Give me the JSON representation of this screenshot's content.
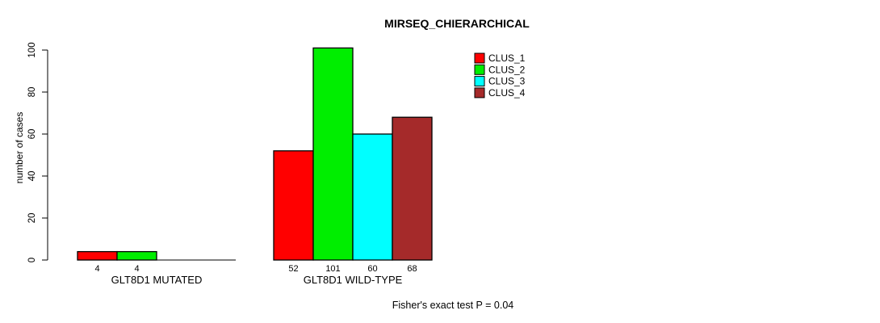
{
  "chart_data": {
    "type": "bar",
    "title": "MIRSEQ_CHIERARCHICAL",
    "ylabel": "number of cases",
    "xlabel": "",
    "ylim": [
      0,
      100
    ],
    "yticks": [
      0,
      20,
      40,
      60,
      80,
      100
    ],
    "grid": false,
    "legend_position": "top-right",
    "categories": [
      "GLT8D1 MUTATED",
      "GLT8D1 WILD-TYPE"
    ],
    "series": [
      {
        "name": "CLUS_1",
        "color": "#FF0000",
        "values": [
          4,
          52
        ]
      },
      {
        "name": "CLUS_2",
        "color": "#00EE00",
        "values": [
          4,
          101
        ]
      },
      {
        "name": "CLUS_3",
        "color": "#00FFFF",
        "values": [
          0,
          60
        ]
      },
      {
        "name": "CLUS_4",
        "color": "#A52A2A",
        "values": [
          0,
          68
        ]
      }
    ],
    "bar_value_labels": {
      "GLT8D1 MUTATED": [
        "4",
        "4",
        "",
        ""
      ],
      "GLT8D1 WILD-TYPE": [
        "52",
        "101",
        "60",
        "68"
      ]
    },
    "footer_note": "Fisher's exact test P = 0.04",
    "axis_color": "#000000",
    "bar_border_color": "#000000"
  }
}
